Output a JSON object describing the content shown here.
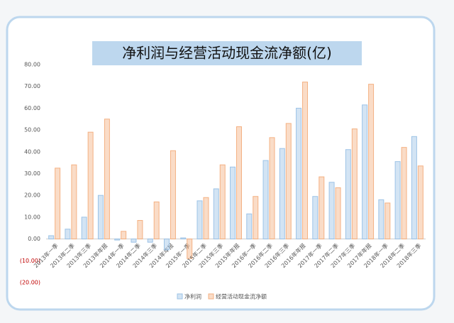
{
  "chart_data": {
    "type": "bar",
    "title": "净利润与经营活动现金流净额(亿)",
    "categories": [
      "2013年一季",
      "2013年二季",
      "2013年三季",
      "2013年年报",
      "2014年一季",
      "2014年二季",
      "2014年三季",
      "2014年年报",
      "2015年一季",
      "2015年二季",
      "2015年三季",
      "2015年年报",
      "2016年一季",
      "2016年二季",
      "2016年三季",
      "2016年年报",
      "2017年一季",
      "2017年二季",
      "2017年三季",
      "2017年年报",
      "2018年一季",
      "2018年二季",
      "2018年三季"
    ],
    "series": [
      {
        "name": "净利润",
        "color": "#9dc3e6",
        "values": [
          1.5,
          4.5,
          10,
          20,
          -0.5,
          -1.5,
          -1.5,
          -5,
          0.5,
          17.5,
          23,
          33,
          11.5,
          36,
          41.5,
          60,
          19.5,
          26,
          41,
          61.5,
          18,
          35.5,
          47
        ]
      },
      {
        "name": "经营活动现金流净额",
        "color": "#f4b183",
        "values": [
          32.5,
          34,
          49,
          55,
          3.5,
          8.5,
          17,
          40.5,
          -9,
          19,
          34,
          51.5,
          19.5,
          46.5,
          53,
          72,
          28.5,
          23.5,
          50.5,
          71,
          16.5,
          42,
          33.5
        ]
      }
    ],
    "ylim": [
      -20,
      80
    ],
    "yticks": [
      {
        "value": 80,
        "label": "80.00"
      },
      {
        "value": 70,
        "label": "70.00"
      },
      {
        "value": 60,
        "label": "60.00"
      },
      {
        "value": 50,
        "label": "50.00"
      },
      {
        "value": 40,
        "label": "40.00"
      },
      {
        "value": 30,
        "label": "30.00"
      },
      {
        "value": 20,
        "label": "20.00"
      },
      {
        "value": 10,
        "label": "10.00"
      },
      {
        "value": 0,
        "label": "0.00"
      },
      {
        "value": -10,
        "label": "(10.00)"
      },
      {
        "value": -20,
        "label": "(20.00)"
      }
    ],
    "negative_tick_color": "#c00000",
    "grid": false,
    "legend": "bottom"
  }
}
